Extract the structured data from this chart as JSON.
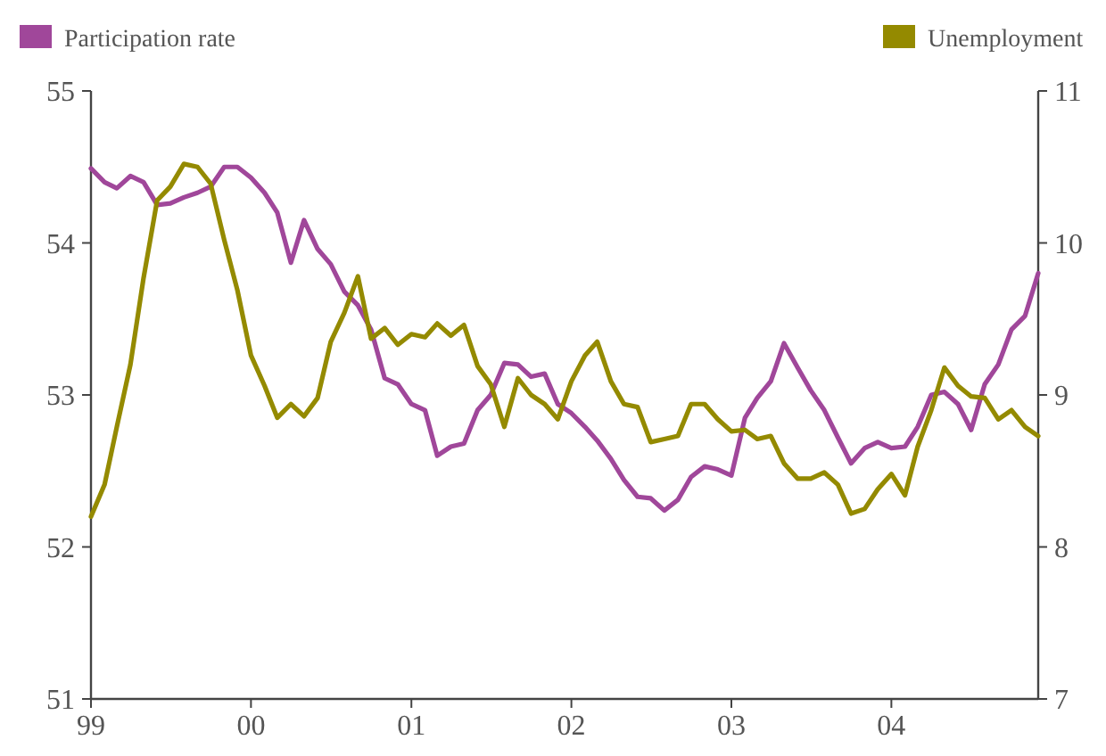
{
  "chart_data": {
    "type": "line",
    "x": [
      "1999-01",
      "1999-02",
      "1999-03",
      "1999-04",
      "1999-05",
      "1999-06",
      "1999-07",
      "1999-08",
      "1999-09",
      "1999-10",
      "1999-11",
      "1999-12",
      "2000-01",
      "2000-02",
      "2000-03",
      "2000-04",
      "2000-05",
      "2000-06",
      "2000-07",
      "2000-08",
      "2000-09",
      "2000-10",
      "2000-11",
      "2000-12",
      "2001-01",
      "2001-02",
      "2001-03",
      "2001-04",
      "2001-05",
      "2001-06",
      "2001-07",
      "2001-08",
      "2001-09",
      "2001-10",
      "2001-11",
      "2001-12",
      "2002-01",
      "2002-02",
      "2002-03",
      "2002-04",
      "2002-05",
      "2002-06",
      "2002-07",
      "2002-08",
      "2002-09",
      "2002-10",
      "2002-11",
      "2002-12",
      "2003-01",
      "2003-02",
      "2003-03",
      "2003-04",
      "2003-05",
      "2003-06",
      "2003-07",
      "2003-08",
      "2003-09",
      "2003-10",
      "2003-11",
      "2003-12",
      "2004-01",
      "2004-02",
      "2004-03",
      "2004-04",
      "2004-05",
      "2004-06",
      "2004-07",
      "2004-08",
      "2004-09",
      "2004-10",
      "2004-11",
      "2004-12"
    ],
    "series": [
      {
        "name": "Participation rate",
        "color": "#a0479a",
        "values": [
          54.49,
          54.4,
          54.36,
          54.44,
          54.4,
          54.25,
          54.26,
          54.3,
          54.33,
          54.37,
          54.5,
          54.5,
          54.43,
          54.33,
          54.2,
          53.87,
          54.15,
          53.96,
          53.86,
          53.68,
          53.59,
          53.43,
          53.11,
          53.07,
          52.94,
          52.9,
          52.6,
          52.66,
          52.68,
          52.9,
          53.0,
          53.21,
          53.2,
          53.12,
          53.14,
          52.94,
          52.88,
          52.79,
          52.7,
          52.58,
          52.44,
          52.33,
          52.32,
          52.24,
          52.31,
          52.46,
          52.53,
          52.51,
          52.47,
          52.85,
          52.98,
          53.09,
          53.34,
          53.18,
          53.03,
          52.9,
          52.72,
          52.55,
          52.65,
          52.69,
          52.65,
          52.66,
          52.79,
          53.0,
          53.02,
          52.94,
          52.77,
          53.07,
          53.2,
          53.43,
          53.52,
          53.8
        ]
      },
      {
        "name": "Unemployment",
        "color": "#948a00",
        "axis": "y2",
        "values": [
          8.2,
          8.41,
          8.79,
          9.2,
          9.77,
          10.28,
          10.37,
          10.52,
          10.5,
          10.39,
          10.02,
          9.69,
          9.26,
          9.06,
          8.85,
          8.94,
          8.86,
          8.98,
          9.35,
          9.54,
          9.78,
          9.37,
          9.44,
          9.33,
          9.4,
          9.38,
          9.47,
          9.39,
          9.46,
          9.19,
          9.07,
          8.79,
          9.11,
          9.0,
          8.94,
          8.84,
          9.09,
          9.26,
          9.35,
          9.09,
          8.94,
          8.92,
          8.69,
          8.71,
          8.73,
          8.94,
          8.94,
          8.84,
          8.76,
          8.77,
          8.71,
          8.73,
          8.55,
          8.45,
          8.45,
          8.49,
          8.41,
          8.22,
          8.25,
          8.38,
          8.48,
          8.34,
          8.66,
          8.9,
          9.18,
          9.06,
          8.99,
          8.98,
          8.84,
          8.9,
          8.79,
          8.73
        ]
      }
    ],
    "xlim": [
      "1999-01",
      "2004-12"
    ],
    "xticks": [
      {
        "value": "1999-01",
        "label": "99"
      },
      {
        "value": "2000-01",
        "label": "00"
      },
      {
        "value": "2001-01",
        "label": "01"
      },
      {
        "value": "2002-01",
        "label": "02"
      },
      {
        "value": "2003-01",
        "label": "03"
      },
      {
        "value": "2004-01",
        "label": "04"
      }
    ],
    "ylim": [
      51,
      55
    ],
    "yticks": [
      51,
      52,
      53,
      54,
      55
    ],
    "y2lim": [
      7,
      11
    ],
    "y2ticks": [
      7,
      8,
      9,
      10,
      11
    ],
    "legend": "top"
  }
}
